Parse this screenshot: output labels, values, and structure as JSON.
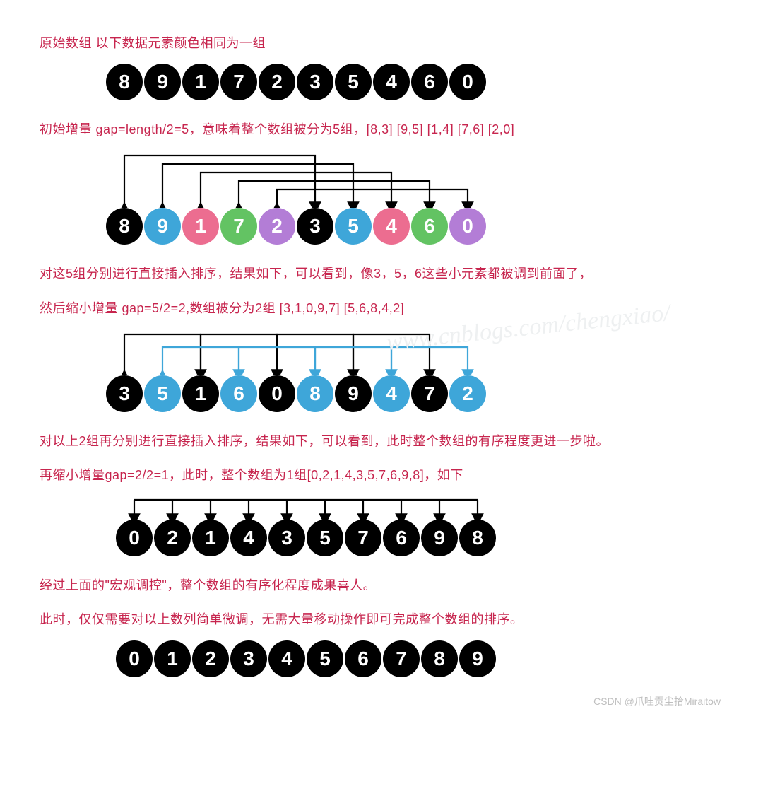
{
  "colors": {
    "black": "#000000",
    "blue": "#3ea6d9",
    "pink": "#ec6d90",
    "green": "#63c363",
    "purple": "#b37dd6",
    "red_text": "#c7254e",
    "footer": "#bfbfbf",
    "arc_black": "#000000",
    "arc_blue": "#3ea6d9",
    "watermark": "#eef0f1",
    "bg": "#ffffff"
  },
  "ball_style": {
    "diameter": 52,
    "gap": 2,
    "left_pad": 100,
    "font_size": 28,
    "font_weight": 700,
    "text_color": "#ffffff"
  },
  "arc_style": {
    "stroke_width": 2.2,
    "arrow_size": 7
  },
  "footer": "CSDN @爪哇贡尘拾Miraitow",
  "watermark": "www.cnblogs.com/chengxiao/",
  "texts": {
    "t1": "原始数组  以下数据元素颜色相同为一组",
    "t2": "初始增量 gap=length/2=5，意味着整个数组被分为5组，[8,3] [9,5] [1,4] [7,6] [2,0]",
    "t3a": "对这5组分别进行直接插入排序，结果如下，可以看到，像3，5，6这些小元素都被调到前面了，",
    "t3b": "然后缩小增量 gap=5/2=2,数组被分为2组 [3,1,0,9,7] [5,6,8,4,2]",
    "t4a": "对以上2组再分别进行直接插入排序，结果如下，可以看到，此时整个数组的有序程度更进一步啦。",
    "t4b": "再缩小增量gap=2/2=1，此时，整个数组为1组[0,2,1,4,3,5,7,6,9,8]，如下",
    "t5a": "经过上面的\"宏观调控\"，整个数组的有序化程度成果喜人。",
    "t5b": "此时，仅仅需要对以上数列简单微调，无需大量移动操作即可完成整个数组的排序。"
  },
  "rows": {
    "r1": {
      "balls": [
        {
          "v": "8",
          "c": "black"
        },
        {
          "v": "9",
          "c": "black"
        },
        {
          "v": "1",
          "c": "black"
        },
        {
          "v": "7",
          "c": "black"
        },
        {
          "v": "2",
          "c": "black"
        },
        {
          "v": "3",
          "c": "black"
        },
        {
          "v": "5",
          "c": "black"
        },
        {
          "v": "4",
          "c": "black"
        },
        {
          "v": "6",
          "c": "black"
        },
        {
          "v": "0",
          "c": "black"
        }
      ]
    },
    "r2": {
      "balls": [
        {
          "v": "8",
          "c": "black"
        },
        {
          "v": "9",
          "c": "blue"
        },
        {
          "v": "1",
          "c": "pink"
        },
        {
          "v": "7",
          "c": "green"
        },
        {
          "v": "2",
          "c": "purple"
        },
        {
          "v": "3",
          "c": "black"
        },
        {
          "v": "5",
          "c": "blue"
        },
        {
          "v": "4",
          "c": "pink"
        },
        {
          "v": "6",
          "c": "green"
        },
        {
          "v": "0",
          "c": "purple"
        }
      ],
      "arcs": {
        "pairs": [
          [
            0,
            5
          ],
          [
            1,
            6
          ],
          [
            2,
            7
          ],
          [
            3,
            8
          ],
          [
            4,
            9
          ]
        ],
        "levels": [
          5,
          4,
          3,
          2,
          1
        ],
        "color": "arc_black",
        "h_base": 14,
        "h_step": 12,
        "top_gap": 8
      }
    },
    "r3": {
      "balls": [
        {
          "v": "3",
          "c": "black"
        },
        {
          "v": "5",
          "c": "blue"
        },
        {
          "v": "1",
          "c": "black"
        },
        {
          "v": "6",
          "c": "blue"
        },
        {
          "v": "0",
          "c": "black"
        },
        {
          "v": "8",
          "c": "blue"
        },
        {
          "v": "9",
          "c": "black"
        },
        {
          "v": "4",
          "c": "blue"
        },
        {
          "v": "7",
          "c": "black"
        },
        {
          "v": "2",
          "c": "blue"
        }
      ],
      "arc_groups": [
        {
          "pairs": [
            [
              0,
              2
            ],
            [
              2,
              4
            ],
            [
              4,
              6
            ],
            [
              6,
              8
            ]
          ],
          "color": "arc_black",
          "level": 2
        },
        {
          "pairs": [
            [
              1,
              3
            ],
            [
              3,
              5
            ],
            [
              5,
              7
            ],
            [
              7,
              9
            ]
          ],
          "color": "arc_blue",
          "level": 1
        }
      ],
      "h_base": 22,
      "h_step": 18,
      "top_gap": 8
    },
    "r4": {
      "balls": [
        {
          "v": "0",
          "c": "black"
        },
        {
          "v": "2",
          "c": "black"
        },
        {
          "v": "1",
          "c": "black"
        },
        {
          "v": "4",
          "c": "black"
        },
        {
          "v": "3",
          "c": "black"
        },
        {
          "v": "5",
          "c": "black"
        },
        {
          "v": "7",
          "c": "black"
        },
        {
          "v": "6",
          "c": "black"
        },
        {
          "v": "9",
          "c": "black"
        },
        {
          "v": "8",
          "c": "black"
        }
      ],
      "arcs": {
        "pairs": [
          [
            0,
            1
          ],
          [
            1,
            2
          ],
          [
            2,
            3
          ],
          [
            3,
            4
          ],
          [
            4,
            5
          ],
          [
            5,
            6
          ],
          [
            6,
            7
          ],
          [
            7,
            8
          ],
          [
            8,
            9
          ]
        ],
        "color": "arc_black",
        "single_level": true,
        "h": 28,
        "top_gap": 6
      }
    },
    "r5": {
      "balls": [
        {
          "v": "0",
          "c": "black"
        },
        {
          "v": "1",
          "c": "black"
        },
        {
          "v": "2",
          "c": "black"
        },
        {
          "v": "3",
          "c": "black"
        },
        {
          "v": "4",
          "c": "black"
        },
        {
          "v": "5",
          "c": "black"
        },
        {
          "v": "6",
          "c": "black"
        },
        {
          "v": "7",
          "c": "black"
        },
        {
          "v": "8",
          "c": "black"
        },
        {
          "v": "9",
          "c": "black"
        }
      ]
    }
  }
}
